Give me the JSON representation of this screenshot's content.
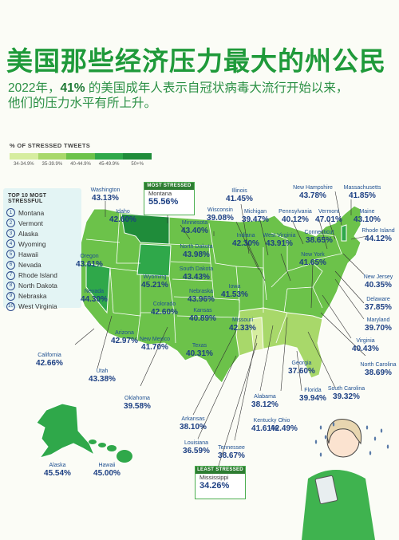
{
  "title": "美国那些经济压力最大的州公民",
  "subtitle": {
    "part1": "2022年，",
    "highlight": "41%",
    "part2": " 的美国成年人表示自冠状病毒大流行开始以来，",
    "line2": "他们的压力水平有所上升。"
  },
  "legend": {
    "title": "% OF STRESSED TWEETS",
    "bins": [
      {
        "label": "34-34.9%",
        "color": "#d6ed9f"
      },
      {
        "label": "35-39.9%",
        "color": "#a8d86a"
      },
      {
        "label": "40-44.9%",
        "color": "#6cc24a"
      },
      {
        "label": "45-49.9%",
        "color": "#2fa84a"
      },
      {
        "label": "50+%",
        "color": "#1f8c3a"
      }
    ]
  },
  "top10": {
    "title": "TOP 10 MOST STRESSFUL",
    "items": [
      "Montana",
      "Vermont",
      "Alaska",
      "Wyoming",
      "Hawaii",
      "Nevada",
      "Rhode Island",
      "North Dakota",
      "Nebraska",
      "West Virginia"
    ],
    "numbers": [
      "1",
      "2",
      "3",
      "4",
      "5",
      "6",
      "7",
      "8",
      "9",
      "10"
    ]
  },
  "most_stressed": {
    "header": "MOST STRESSED",
    "state": "Montana",
    "value": "55.56%"
  },
  "least_stressed": {
    "header": "LEAST STRESSED",
    "state": "Mississippi",
    "value": "34.26%"
  },
  "states": [
    {
      "name": "Washington",
      "value": "43.13%"
    },
    {
      "name": "Idaho",
      "value": "42.60%"
    },
    {
      "name": "Oregon",
      "value": "43.61%"
    },
    {
      "name": "California",
      "value": "42.66%"
    },
    {
      "name": "Nevada",
      "value": "44.30%"
    },
    {
      "name": "Utah",
      "value": "43.38%"
    },
    {
      "name": "Arizona",
      "value": "42.97%"
    },
    {
      "name": "Wyoming",
      "value": "45.21%"
    },
    {
      "name": "Colorado",
      "value": "42.60%"
    },
    {
      "name": "New Mexico",
      "value": "41.70%"
    },
    {
      "name": "North Dakota",
      "value": "43.98%"
    },
    {
      "name": "South Dakota",
      "value": "43.43%"
    },
    {
      "name": "Nebraska",
      "value": "43.96%"
    },
    {
      "name": "Kansas",
      "value": "40.89%"
    },
    {
      "name": "Oklahoma",
      "value": "39.58%"
    },
    {
      "name": "Texas",
      "value": "40.31%"
    },
    {
      "name": "Minnesota",
      "value": "43.40%"
    },
    {
      "name": "Iowa",
      "value": "41.53%"
    },
    {
      "name": "Missouri",
      "value": "42.33%"
    },
    {
      "name": "Arkansas",
      "value": "38.10%"
    },
    {
      "name": "Louisiana",
      "value": "36.59%"
    },
    {
      "name": "Wisconsin",
      "value": "39.08%"
    },
    {
      "name": "Illinois",
      "value": "41.45%"
    },
    {
      "name": "Michigan",
      "value": "39.47%"
    },
    {
      "name": "Indiana",
      "value": "42.30%"
    },
    {
      "name": "Kentucky",
      "value": "41.61%"
    },
    {
      "name": "Tennessee",
      "value": "38.67%"
    },
    {
      "name": "Alabama",
      "value": "38.12%"
    },
    {
      "name": "Georgia",
      "value": "37.60%"
    },
    {
      "name": "Florida",
      "value": "39.94%"
    },
    {
      "name": "Ohio",
      "value": "42.49%"
    },
    {
      "name": "West Virginia",
      "value": "43.91%"
    },
    {
      "name": "Pennsylvania",
      "value": "40.12%"
    },
    {
      "name": "New York",
      "value": "41.65%"
    },
    {
      "name": "Vermont",
      "value": "47.01%"
    },
    {
      "name": "New Hampshire",
      "value": "43.78%"
    },
    {
      "name": "Maine",
      "value": "43.10%"
    },
    {
      "name": "Massachusetts",
      "value": "41.85%"
    },
    {
      "name": "Rhode Island",
      "value": "44.12%"
    },
    {
      "name": "Connecticut",
      "value": "38.65%"
    },
    {
      "name": "New Jersey",
      "value": "40.35%"
    },
    {
      "name": "Delaware",
      "value": "37.85%"
    },
    {
      "name": "Maryland",
      "value": "39.70%"
    },
    {
      "name": "Virginia",
      "value": "40.43%"
    },
    {
      "name": "North Carolina",
      "value": "38.69%"
    },
    {
      "name": "South Carolina",
      "value": "39.32%"
    },
    {
      "name": "Alaska",
      "value": "45.54%"
    },
    {
      "name": "Hawaii",
      "value": "45.00%"
    }
  ]
}
